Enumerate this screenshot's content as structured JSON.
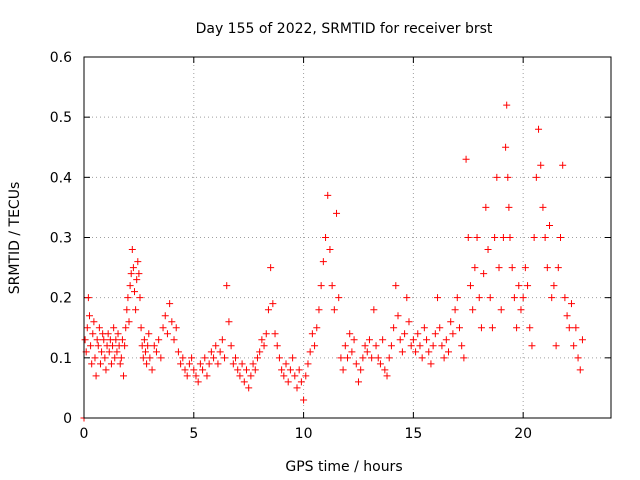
{
  "chart_data": {
    "type": "scatter",
    "title": "Day 155 of 2022, SRMTID for receiver brst",
    "xlabel": "GPS time / hours",
    "ylabel": "SRMTID / TECUs",
    "xlim": [
      0,
      24
    ],
    "ylim": [
      0,
      0.6
    ],
    "xticks": [
      0,
      5,
      10,
      15,
      20
    ],
    "xtick_labels": [
      "0",
      "5",
      "10",
      "15",
      "20"
    ],
    "yticks": [
      0,
      0.1,
      0.2,
      0.3,
      0.4,
      0.5,
      0.6
    ],
    "ytick_labels": [
      "0",
      "0.1",
      "0.2",
      "0.3",
      "0.4",
      "0.5",
      "0.6"
    ],
    "grid": true,
    "marker": "+",
    "series_color": "#ff0000",
    "grid_color": "#a0a0a0",
    "series": [
      {
        "name": "SRMTID",
        "points": [
          [
            0.0,
            0.0
          ],
          [
            0.05,
            0.13
          ],
          [
            0.1,
            0.11
          ],
          [
            0.15,
            0.15
          ],
          [
            0.2,
            0.2
          ],
          [
            0.25,
            0.17
          ],
          [
            0.3,
            0.12
          ],
          [
            0.35,
            0.09
          ],
          [
            0.4,
            0.14
          ],
          [
            0.45,
            0.16
          ],
          [
            0.5,
            0.1
          ],
          [
            0.55,
            0.07
          ],
          [
            0.6,
            0.13
          ],
          [
            0.65,
            0.12
          ],
          [
            0.7,
            0.15
          ],
          [
            0.75,
            0.09
          ],
          [
            0.8,
            0.11
          ],
          [
            0.85,
            0.14
          ],
          [
            0.9,
            0.13
          ],
          [
            0.95,
            0.1
          ],
          [
            1.0,
            0.08
          ],
          [
            1.05,
            0.12
          ],
          [
            1.1,
            0.14
          ],
          [
            1.15,
            0.11
          ],
          [
            1.2,
            0.13
          ],
          [
            1.25,
            0.09
          ],
          [
            1.3,
            0.12
          ],
          [
            1.35,
            0.15
          ],
          [
            1.4,
            0.1
          ],
          [
            1.45,
            0.13
          ],
          [
            1.5,
            0.11
          ],
          [
            1.55,
            0.14
          ],
          [
            1.6,
            0.12
          ],
          [
            1.65,
            0.09
          ],
          [
            1.7,
            0.1
          ],
          [
            1.75,
            0.13
          ],
          [
            1.8,
            0.07
          ],
          [
            1.85,
            0.12
          ],
          [
            1.9,
            0.15
          ],
          [
            1.95,
            0.18
          ],
          [
            2.0,
            0.2
          ],
          [
            2.05,
            0.16
          ],
          [
            2.1,
            0.22
          ],
          [
            2.15,
            0.24
          ],
          [
            2.2,
            0.28
          ],
          [
            2.25,
            0.25
          ],
          [
            2.3,
            0.21
          ],
          [
            2.35,
            0.18
          ],
          [
            2.4,
            0.23
          ],
          [
            2.45,
            0.26
          ],
          [
            2.5,
            0.24
          ],
          [
            2.55,
            0.2
          ],
          [
            2.6,
            0.15
          ],
          [
            2.65,
            0.12
          ],
          [
            2.7,
            0.1
          ],
          [
            2.75,
            0.13
          ],
          [
            2.8,
            0.11
          ],
          [
            2.85,
            0.09
          ],
          [
            2.9,
            0.12
          ],
          [
            2.95,
            0.14
          ],
          [
            3.0,
            0.1
          ],
          [
            3.1,
            0.08
          ],
          [
            3.2,
            0.12
          ],
          [
            3.3,
            0.11
          ],
          [
            3.4,
            0.13
          ],
          [
            3.5,
            0.1
          ],
          [
            3.6,
            0.15
          ],
          [
            3.7,
            0.17
          ],
          [
            3.8,
            0.14
          ],
          [
            3.9,
            0.19
          ],
          [
            4.0,
            0.16
          ],
          [
            4.1,
            0.13
          ],
          [
            4.2,
            0.15
          ],
          [
            4.3,
            0.11
          ],
          [
            4.4,
            0.09
          ],
          [
            4.5,
            0.1
          ],
          [
            4.6,
            0.08
          ],
          [
            4.7,
            0.07
          ],
          [
            4.8,
            0.09
          ],
          [
            4.9,
            0.1
          ],
          [
            5.0,
            0.08
          ],
          [
            5.1,
            0.07
          ],
          [
            5.2,
            0.06
          ],
          [
            5.3,
            0.09
          ],
          [
            5.4,
            0.08
          ],
          [
            5.5,
            0.1
          ],
          [
            5.6,
            0.07
          ],
          [
            5.7,
            0.09
          ],
          [
            5.8,
            0.11
          ],
          [
            5.9,
            0.1
          ],
          [
            6.0,
            0.12
          ],
          [
            6.1,
            0.09
          ],
          [
            6.2,
            0.11
          ],
          [
            6.3,
            0.13
          ],
          [
            6.4,
            0.1
          ],
          [
            6.5,
            0.22
          ],
          [
            6.6,
            0.16
          ],
          [
            6.7,
            0.12
          ],
          [
            6.8,
            0.09
          ],
          [
            6.9,
            0.1
          ],
          [
            7.0,
            0.08
          ],
          [
            7.1,
            0.07
          ],
          [
            7.2,
            0.09
          ],
          [
            7.3,
            0.06
          ],
          [
            7.4,
            0.08
          ],
          [
            7.5,
            0.05
          ],
          [
            7.6,
            0.07
          ],
          [
            7.7,
            0.09
          ],
          [
            7.8,
            0.08
          ],
          [
            7.9,
            0.1
          ],
          [
            8.0,
            0.11
          ],
          [
            8.1,
            0.13
          ],
          [
            8.2,
            0.12
          ],
          [
            8.3,
            0.14
          ],
          [
            8.4,
            0.18
          ],
          [
            8.5,
            0.25
          ],
          [
            8.6,
            0.19
          ],
          [
            8.7,
            0.14
          ],
          [
            8.8,
            0.12
          ],
          [
            8.9,
            0.1
          ],
          [
            9.0,
            0.08
          ],
          [
            9.1,
            0.07
          ],
          [
            9.2,
            0.09
          ],
          [
            9.3,
            0.06
          ],
          [
            9.4,
            0.08
          ],
          [
            9.5,
            0.1
          ],
          [
            9.6,
            0.07
          ],
          [
            9.7,
            0.05
          ],
          [
            9.8,
            0.08
          ],
          [
            9.9,
            0.06
          ],
          [
            10.0,
            0.03
          ],
          [
            10.1,
            0.07
          ],
          [
            10.2,
            0.09
          ],
          [
            10.3,
            0.11
          ],
          [
            10.4,
            0.14
          ],
          [
            10.5,
            0.12
          ],
          [
            10.6,
            0.15
          ],
          [
            10.7,
            0.18
          ],
          [
            10.8,
            0.22
          ],
          [
            10.9,
            0.26
          ],
          [
            11.0,
            0.3
          ],
          [
            11.1,
            0.37
          ],
          [
            11.2,
            0.28
          ],
          [
            11.3,
            0.22
          ],
          [
            11.4,
            0.18
          ],
          [
            11.5,
            0.34
          ],
          [
            11.6,
            0.2
          ],
          [
            11.7,
            0.1
          ],
          [
            11.8,
            0.08
          ],
          [
            11.9,
            0.12
          ],
          [
            12.0,
            0.1
          ],
          [
            12.1,
            0.14
          ],
          [
            12.2,
            0.11
          ],
          [
            12.3,
            0.13
          ],
          [
            12.4,
            0.09
          ],
          [
            12.5,
            0.06
          ],
          [
            12.6,
            0.08
          ],
          [
            12.7,
            0.1
          ],
          [
            12.8,
            0.12
          ],
          [
            12.9,
            0.11
          ],
          [
            13.0,
            0.13
          ],
          [
            13.1,
            0.1
          ],
          [
            13.2,
            0.18
          ],
          [
            13.3,
            0.12
          ],
          [
            13.4,
            0.1
          ],
          [
            13.5,
            0.09
          ],
          [
            13.6,
            0.13
          ],
          [
            13.7,
            0.08
          ],
          [
            13.8,
            0.07
          ],
          [
            13.9,
            0.1
          ],
          [
            14.0,
            0.12
          ],
          [
            14.1,
            0.15
          ],
          [
            14.2,
            0.22
          ],
          [
            14.3,
            0.17
          ],
          [
            14.4,
            0.13
          ],
          [
            14.5,
            0.11
          ],
          [
            14.6,
            0.14
          ],
          [
            14.7,
            0.2
          ],
          [
            14.8,
            0.16
          ],
          [
            14.9,
            0.12
          ],
          [
            15.0,
            0.13
          ],
          [
            15.1,
            0.11
          ],
          [
            15.2,
            0.14
          ],
          [
            15.3,
            0.12
          ],
          [
            15.4,
            0.1
          ],
          [
            15.5,
            0.15
          ],
          [
            15.6,
            0.13
          ],
          [
            15.7,
            0.11
          ],
          [
            15.8,
            0.09
          ],
          [
            15.9,
            0.12
          ],
          [
            16.0,
            0.14
          ],
          [
            16.1,
            0.2
          ],
          [
            16.2,
            0.15
          ],
          [
            16.3,
            0.12
          ],
          [
            16.4,
            0.1
          ],
          [
            16.5,
            0.13
          ],
          [
            16.6,
            0.11
          ],
          [
            16.7,
            0.16
          ],
          [
            16.8,
            0.14
          ],
          [
            16.9,
            0.18
          ],
          [
            17.0,
            0.2
          ],
          [
            17.1,
            0.15
          ],
          [
            17.2,
            0.12
          ],
          [
            17.3,
            0.1
          ],
          [
            17.4,
            0.43
          ],
          [
            17.5,
            0.3
          ],
          [
            17.6,
            0.22
          ],
          [
            17.7,
            0.18
          ],
          [
            17.8,
            0.25
          ],
          [
            17.9,
            0.3
          ],
          [
            18.0,
            0.2
          ],
          [
            18.1,
            0.15
          ],
          [
            18.2,
            0.24
          ],
          [
            18.3,
            0.35
          ],
          [
            18.4,
            0.28
          ],
          [
            18.5,
            0.2
          ],
          [
            18.6,
            0.15
          ],
          [
            18.7,
            0.3
          ],
          [
            18.8,
            0.4
          ],
          [
            18.9,
            0.25
          ],
          [
            19.0,
            0.18
          ],
          [
            19.1,
            0.3
          ],
          [
            19.2,
            0.45
          ],
          [
            19.25,
            0.52
          ],
          [
            19.3,
            0.4
          ],
          [
            19.35,
            0.35
          ],
          [
            19.4,
            0.3
          ],
          [
            19.5,
            0.25
          ],
          [
            19.6,
            0.2
          ],
          [
            19.7,
            0.15
          ],
          [
            19.8,
            0.22
          ],
          [
            19.9,
            0.18
          ],
          [
            20.0,
            0.2
          ],
          [
            20.1,
            0.25
          ],
          [
            20.2,
            0.22
          ],
          [
            20.3,
            0.15
          ],
          [
            20.4,
            0.12
          ],
          [
            20.5,
            0.3
          ],
          [
            20.6,
            0.4
          ],
          [
            20.7,
            0.48
          ],
          [
            20.8,
            0.42
          ],
          [
            20.9,
            0.35
          ],
          [
            21.0,
            0.3
          ],
          [
            21.1,
            0.25
          ],
          [
            21.2,
            0.32
          ],
          [
            21.3,
            0.2
          ],
          [
            21.4,
            0.22
          ],
          [
            21.5,
            0.12
          ],
          [
            21.6,
            0.25
          ],
          [
            21.7,
            0.3
          ],
          [
            21.8,
            0.42
          ],
          [
            21.9,
            0.2
          ],
          [
            22.0,
            0.17
          ],
          [
            22.1,
            0.15
          ],
          [
            22.2,
            0.19
          ],
          [
            22.3,
            0.12
          ],
          [
            22.4,
            0.15
          ],
          [
            22.5,
            0.1
          ],
          [
            22.6,
            0.08
          ],
          [
            22.7,
            0.13
          ]
        ]
      }
    ]
  }
}
